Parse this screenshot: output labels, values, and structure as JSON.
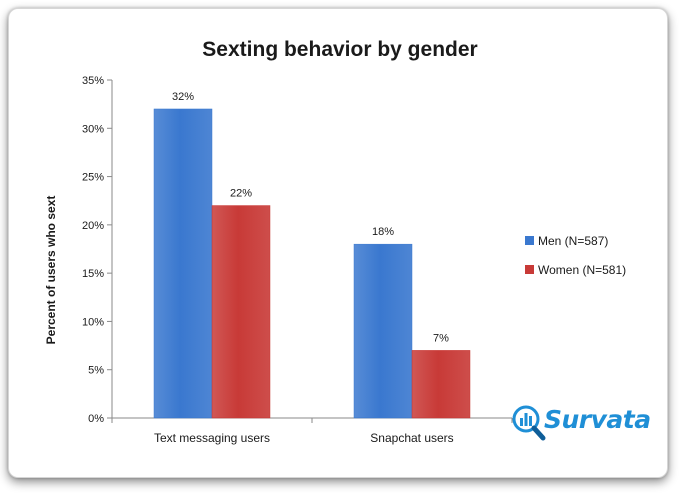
{
  "chart_data": {
    "type": "bar",
    "title": "Sexting behavior by gender",
    "ylabel": "Percent of users who sext",
    "xlabel": "",
    "categories": [
      "Text messaging users",
      "Snapchat users"
    ],
    "series": [
      {
        "name": "Men (N=587)",
        "values": [
          32,
          18
        ],
        "labels": [
          "32%",
          "18%"
        ],
        "color": "#3a78cf"
      },
      {
        "name": "Women (N=581)",
        "values": [
          22,
          7
        ],
        "labels": [
          "22%",
          "7%"
        ],
        "color": "#c83a37"
      }
    ],
    "ylim": [
      0,
      35
    ],
    "ytick_labels": [
      "0%",
      "5%",
      "10%",
      "15%",
      "20%",
      "25%",
      "30%",
      "35%"
    ],
    "grid": false,
    "legend_position": "right"
  },
  "brand": {
    "logo_text": "Survata",
    "logo_icon": "survata-magnifier-icon",
    "color": "#1f8fd6"
  }
}
